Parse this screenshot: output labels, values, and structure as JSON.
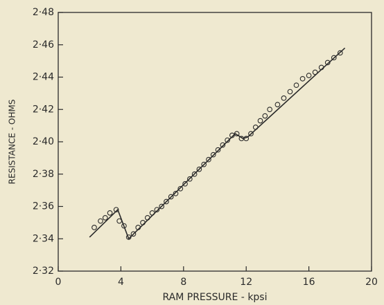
{
  "chart_data": {
    "type": "scatter",
    "xlabel": "RAM PRESSURE - kpsi",
    "ylabel": "RESISTANCE - OHMS",
    "xlim": [
      0,
      20
    ],
    "xticks": [
      0,
      4,
      8,
      12,
      16,
      20
    ],
    "ylim": [
      2.32,
      2.48
    ],
    "yticks": [
      {
        "value": 2.32,
        "label": "2·32"
      },
      {
        "value": 2.34,
        "label": "2·34"
      },
      {
        "value": 2.36,
        "label": "2·36"
      },
      {
        "value": 2.38,
        "label": "2·38"
      },
      {
        "value": 2.4,
        "label": "2·40"
      },
      {
        "value": 2.42,
        "label": "2·42"
      },
      {
        "value": 2.44,
        "label": "2·44"
      },
      {
        "value": 2.46,
        "label": "2·46"
      },
      {
        "value": 2.48,
        "label": "2·48"
      }
    ],
    "series": [
      {
        "mode": "markers",
        "color": "#2a2a2a",
        "x": [
          2.3,
          2.7,
          3.0,
          3.3,
          3.7,
          3.9,
          4.2,
          4.5,
          4.8,
          5.1,
          5.4,
          5.7,
          6.0,
          6.3,
          6.6,
          6.9,
          7.2,
          7.5,
          7.8,
          8.1,
          8.4,
          8.7,
          9.0,
          9.3,
          9.6,
          9.9,
          10.2,
          10.5,
          10.8,
          11.1,
          11.4,
          11.7,
          12.0,
          12.3,
          12.6,
          12.9,
          13.2,
          13.5,
          14.0,
          14.4,
          14.8,
          15.2,
          15.6,
          16.0,
          16.4,
          16.8,
          17.2,
          17.6,
          18.0
        ],
        "values": [
          2.347,
          2.351,
          2.353,
          2.356,
          2.358,
          2.351,
          2.348,
          2.341,
          2.343,
          2.347,
          2.35,
          2.353,
          2.356,
          2.358,
          2.36,
          2.363,
          2.366,
          2.368,
          2.371,
          2.374,
          2.377,
          2.38,
          2.383,
          2.386,
          2.389,
          2.392,
          2.395,
          2.398,
          2.401,
          2.404,
          2.405,
          2.402,
          2.402,
          2.405,
          2.409,
          2.413,
          2.416,
          2.42,
          2.423,
          2.427,
          2.431,
          2.435,
          2.439,
          2.441,
          2.443,
          2.446,
          2.449,
          2.452,
          2.455
        ]
      },
      {
        "mode": "line",
        "color": "#2a2a2a",
        "x": [
          2.0,
          3.8,
          4.5,
          11.3,
          11.8,
          12.1,
          18.3
        ],
        "values": [
          2.341,
          2.358,
          2.34,
          2.405,
          2.402,
          2.403,
          2.458
        ]
      }
    ]
  }
}
